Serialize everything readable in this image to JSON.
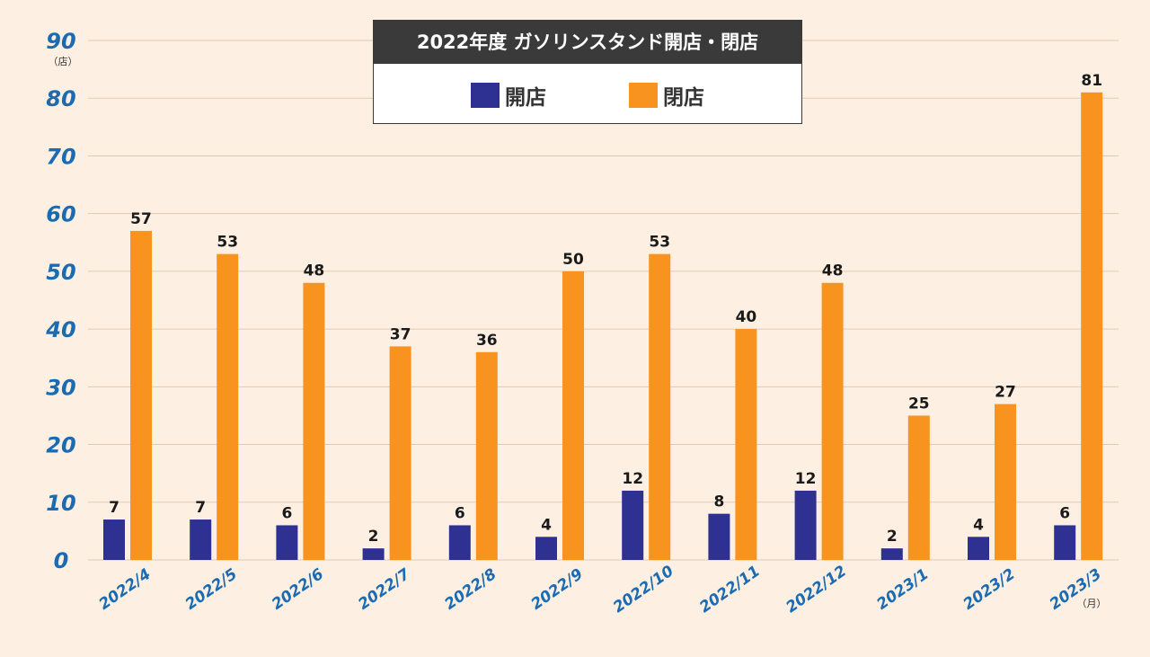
{
  "chart_data": {
    "type": "bar",
    "title": "2022年度 ガソリンスタンド開店・閉店",
    "ylabel_unit": "（店）",
    "xlabel_unit": "（月）",
    "ylim": [
      0,
      90
    ],
    "yticks": [
      0,
      10,
      20,
      30,
      40,
      50,
      60,
      70,
      80,
      90
    ],
    "grid": true,
    "legend_position": "top-center",
    "categories": [
      "2022/4",
      "2022/5",
      "2022/6",
      "2022/7",
      "2022/8",
      "2022/9",
      "2022/10",
      "2022/11",
      "2022/12",
      "2023/1",
      "2023/2",
      "2023/3"
    ],
    "series": [
      {
        "name": "開店",
        "color": "#2e3192",
        "values": [
          7,
          7,
          6,
          2,
          6,
          4,
          12,
          8,
          12,
          2,
          4,
          6
        ]
      },
      {
        "name": "閉店",
        "color": "#f7931e",
        "values": [
          57,
          53,
          48,
          37,
          36,
          50,
          53,
          40,
          48,
          25,
          27,
          81
        ]
      }
    ]
  }
}
